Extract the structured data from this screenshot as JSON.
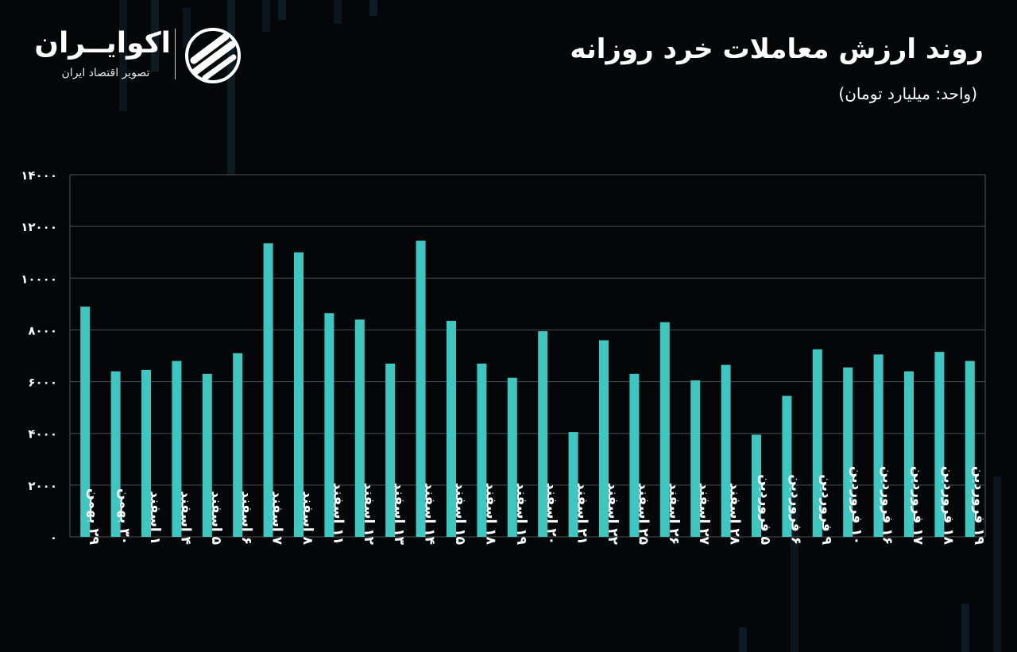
{
  "header": {
    "title": "روند ارزش معاملات خرد روزانه",
    "unit": "(واحد: میلیارد تومان)"
  },
  "brand": {
    "name": "اکوایــران",
    "tagline": "تصویر اقتصاد ایران",
    "accent_color": "#3ec7c0",
    "logo_icon": "swirl-logo-icon"
  },
  "chart_data": {
    "type": "bar",
    "title": "روند ارزش معاملات خرد روزانه",
    "ylim": [
      0,
      14000
    ],
    "yticks": [
      0,
      2000,
      4000,
      6000,
      8000,
      10000,
      12000,
      14000
    ],
    "ytick_labels": [
      "۰",
      "۲۰۰۰",
      "۴۰۰۰",
      "۶۰۰۰",
      "۸۰۰۰",
      "۱۰۰۰۰",
      "۱۲۰۰۰",
      "۱۴۰۰۰"
    ],
    "grid": true,
    "bar_color": "#3ec7c0",
    "categories": [
      "۲۹ بهمن",
      "۳۰ بهمن",
      "۱ اسفند",
      "۴ اسفند",
      "۵ اسفند",
      "۶ اسفند",
      "۷ اسفند",
      "۸ اسفند",
      "۱۱ اسفند",
      "۱۲ اسفند",
      "۱۳ اسفند",
      "۱۴ اسفند",
      "۱۵ اسفند",
      "۱۸ اسفند",
      "۱۹ اسفند",
      "۲۰ اسفند",
      "۲۱ اسفند",
      "۲۲ اسفند",
      "۲۵ اسفند",
      "۲۶ اسفند",
      "۲۷ اسفند",
      "۲۸ اسفند",
      "۵ فروردین",
      "۶ فروردین",
      "۹ فروردین",
      "۱۰ فروردین",
      "۱۶ فروردین",
      "۱۷ فروردین",
      "۱۸ فروردین",
      "۱۹ فروردین"
    ],
    "values": [
      8900,
      6400,
      6450,
      6800,
      6300,
      7100,
      11350,
      11000,
      8650,
      8400,
      6700,
      11450,
      8350,
      6700,
      6150,
      7950,
      4050,
      7600,
      6300,
      8300,
      6050,
      6650,
      3950,
      5450,
      7250,
      6550,
      7050,
      6400,
      7150,
      6800
    ]
  }
}
